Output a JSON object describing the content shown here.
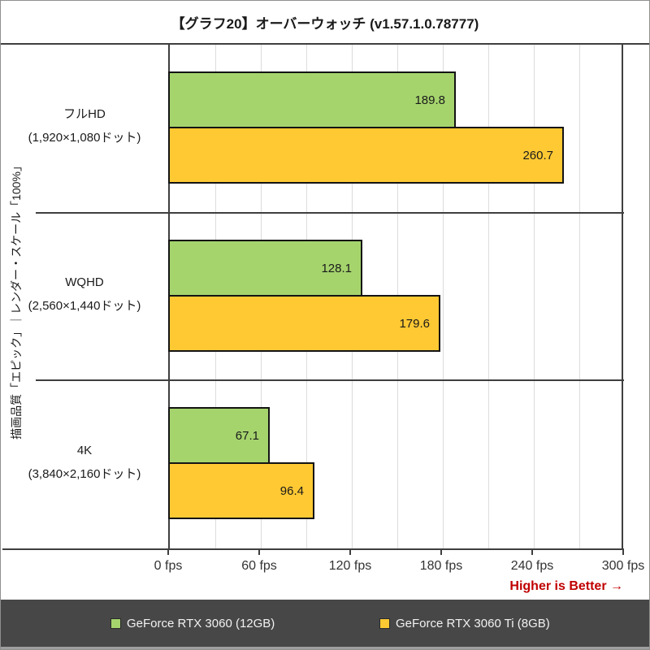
{
  "title": "【グラフ20】オーバーウォッチ (v1.57.1.0.78777)",
  "y_axis_title": "描画品質「エピック」｜レンダー・スケール「100%」",
  "higher_is_better": "Higher is Better →",
  "colors": {
    "series_green": "#a5d46d",
    "series_yellow": "#fec933",
    "bar_border": "#141414",
    "axis_line": "#3f3f3f",
    "gridline": "#dcdcdc",
    "accent_red": "#c00000",
    "legend_bg": "#474747",
    "legend_text": "#f2f2f2"
  },
  "legend": [
    {
      "label": "GeForce RTX 3060 (12GB)",
      "color": "#a5d46d"
    },
    {
      "label": "GeForce RTX 3060 Ti (8GB)",
      "color": "#fec933"
    }
  ],
  "chart_data": {
    "type": "bar",
    "orientation": "horizontal",
    "title": "【グラフ20】オーバーウォッチ (v1.57.1.0.78777)",
    "ylabel": "描画品質「エピック」｜レンダー・スケール「100%」",
    "categories": [
      {
        "line1": "フルHD",
        "line2": "(1,920×1,080ドット)"
      },
      {
        "line1": "WQHD",
        "line2": "(2,560×1,440ドット)"
      },
      {
        "line1": "4K",
        "line2": "(3,840×2,160ドット)"
      }
    ],
    "series": [
      {
        "name": "GeForce RTX 3060 (12GB)",
        "color": "#a5d46d",
        "values": [
          189.8,
          128.1,
          67.1
        ]
      },
      {
        "name": "GeForce RTX 3060 Ti (8GB)",
        "color": "#fec933",
        "values": [
          260.7,
          179.6,
          96.4
        ]
      }
    ],
    "x_ticks": [
      "0 fps",
      "60 fps",
      "120 fps",
      "180 fps",
      "240 fps",
      "300 fps"
    ],
    "xlim": [
      0,
      300
    ],
    "unit": "fps",
    "gridline_step": 30,
    "grid": true,
    "legend_position": "bottom",
    "annotation": "Higher is Better →"
  }
}
